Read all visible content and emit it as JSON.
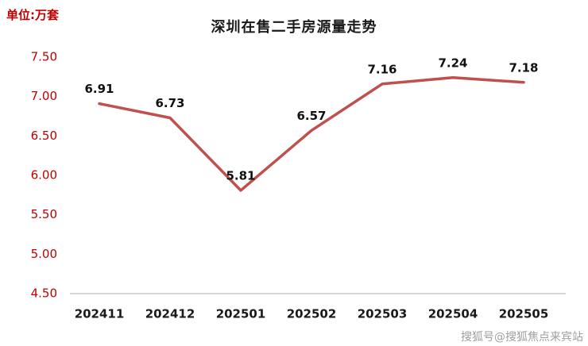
{
  "chart_data": {
    "type": "line",
    "title": "深圳在售二手房源量走势",
    "unit_label": "单位:万套",
    "categories": [
      "202411",
      "202412",
      "202501",
      "202502",
      "202503",
      "202504",
      "202505"
    ],
    "values": [
      6.91,
      6.73,
      5.81,
      6.57,
      7.16,
      7.24,
      7.18
    ],
    "data_labels": [
      "6.91",
      "6.73",
      "5.81",
      "6.57",
      "7.16",
      "7.24",
      "7.18"
    ],
    "ylim": [
      4.5,
      7.5
    ],
    "ytick_labels": [
      "4.50",
      "5.00",
      "5.50",
      "6.00",
      "6.50",
      "7.00",
      "7.50"
    ],
    "grid": false,
    "legend": "none",
    "colors": {
      "line": "#c0504d",
      "ytick_text": "#c00000",
      "xtick_text": "#1a1a1a",
      "data_label_text": "#111111",
      "axis_line": "#c9c9c9"
    }
  },
  "watermark": "搜狐号@搜狐焦点来宾站"
}
